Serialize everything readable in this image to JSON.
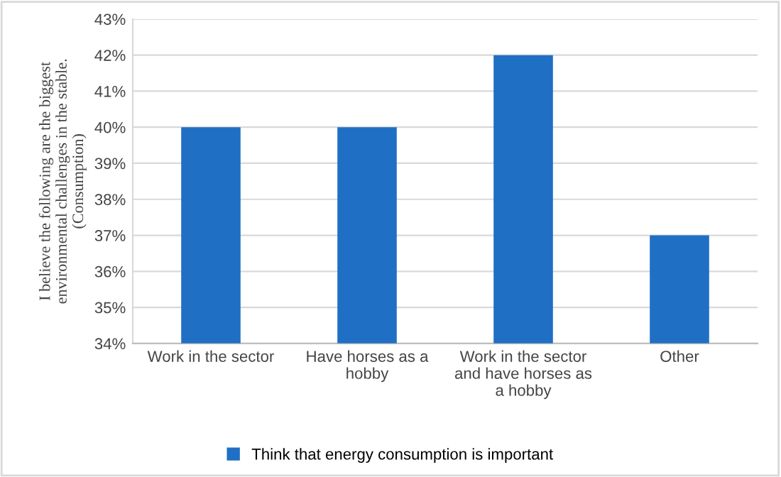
{
  "chart_data": {
    "type": "bar",
    "ylabel": "I believe the following are the biggest\nenvironmental challenges in the stable.\n(Consumption)",
    "categories": [
      "Work in the sector",
      "Have horses as a\nhobby",
      "Work in the sector\nand have horses as\na hobby",
      "Other"
    ],
    "series": [
      {
        "name": "Think that energy consumption is important",
        "color": "#1f6fc5",
        "values": [
          40,
          40,
          42,
          37
        ]
      }
    ],
    "ylim": [
      34,
      43
    ],
    "yticks": [
      {
        "value": 34,
        "label": "34%"
      },
      {
        "value": 35,
        "label": "35%"
      },
      {
        "value": 36,
        "label": "36%"
      },
      {
        "value": 37,
        "label": "37%"
      },
      {
        "value": 38,
        "label": "38%"
      },
      {
        "value": 39,
        "label": "39%"
      },
      {
        "value": 40,
        "label": "40%"
      },
      {
        "value": 41,
        "label": "41%"
      },
      {
        "value": 42,
        "label": "42%"
      },
      {
        "value": 43,
        "label": "43%"
      }
    ],
    "grid": "y",
    "legend": "bottom"
  }
}
